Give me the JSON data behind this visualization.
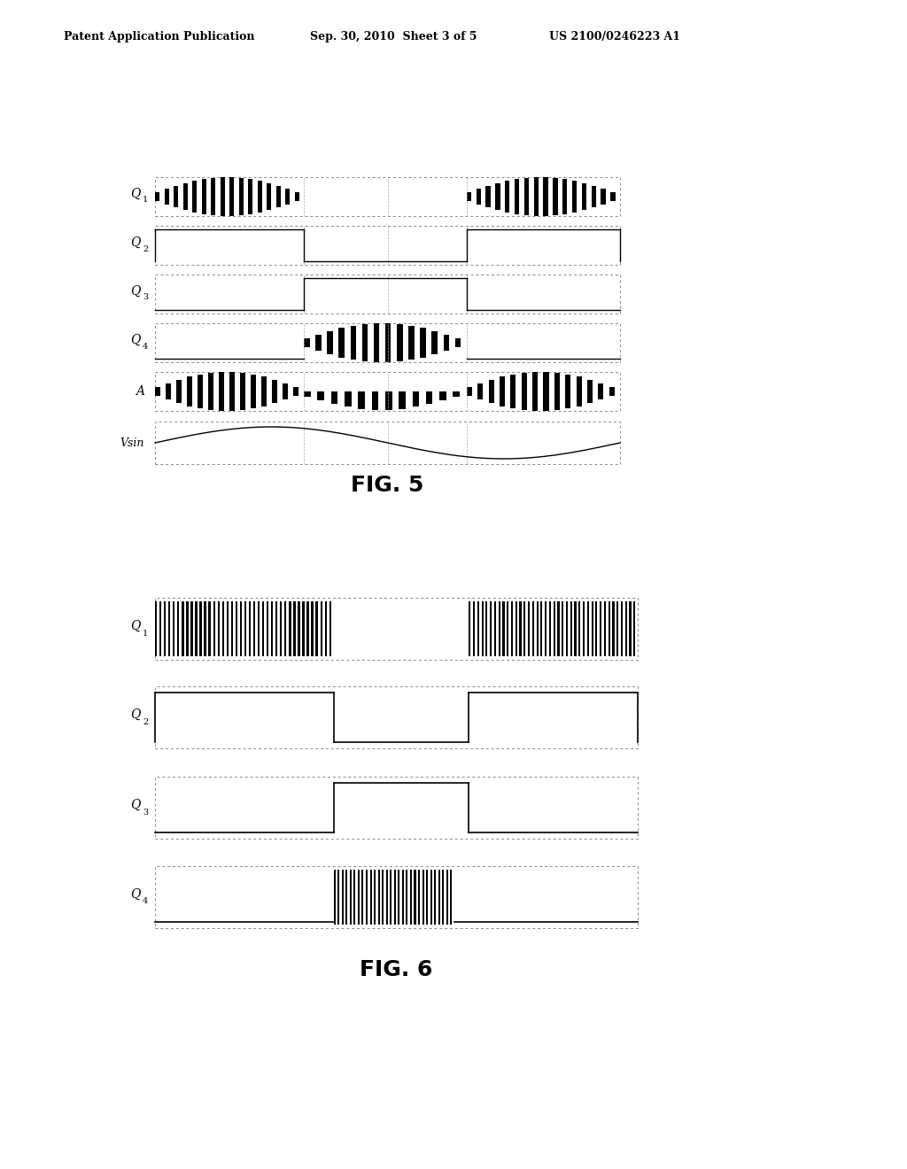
{
  "header_left": "Patent Application Publication",
  "header_mid": "Sep. 30, 2010  Sheet 3 of 5",
  "header_right": "US 2100/0246223 A1",
  "fig5_title": "FIG. 5",
  "fig6_title": "FIG. 6",
  "bg_color": "#ffffff"
}
